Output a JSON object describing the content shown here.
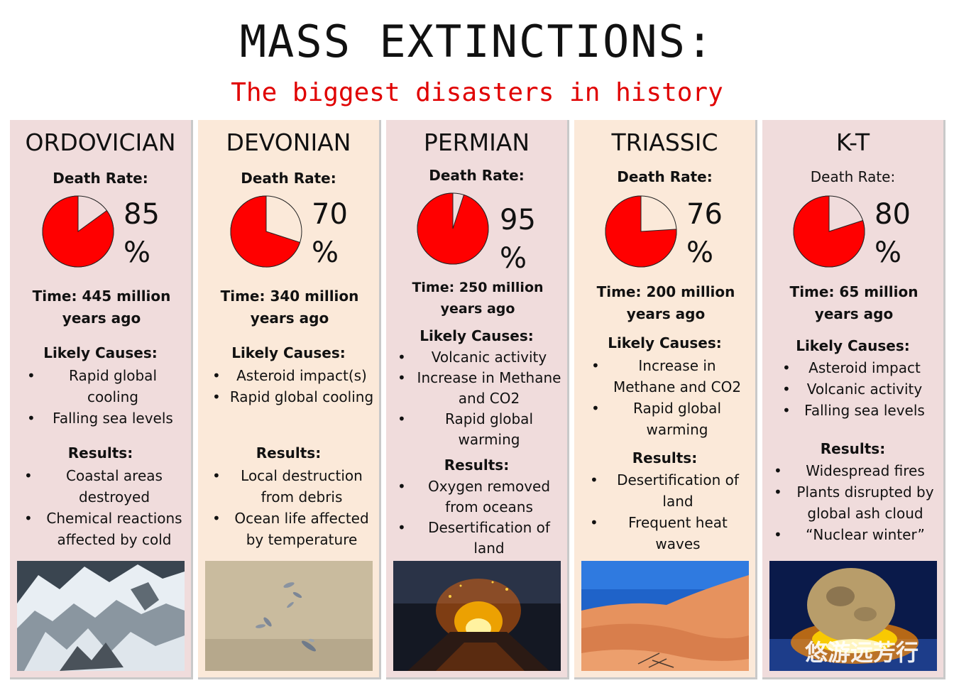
{
  "title": "MASS EXTINCTIONS:",
  "subtitle": "The biggest disasters in history",
  "colors": {
    "pie": "#ff0000",
    "subtitle": "#e00000",
    "pink": "#f0dcdc",
    "peach": "#fbe9d9"
  },
  "columns": [
    {
      "era": "ORDOVICIAN",
      "death_label": "Death Rate:",
      "death_rate": 85,
      "pct_num": "85",
      "pct_sign": "%",
      "time": "Time: 445 million years ago",
      "causes_label": "Likely Causes:",
      "causes": [
        "Rapid global cooling",
        "Falling sea levels"
      ],
      "results_label": "Results:",
      "results": [
        "Coastal areas destroyed",
        "Chemical reactions affected by cold"
      ],
      "image": "glacier-mountains"
    },
    {
      "era": "DEVONIAN",
      "death_label": "Death Rate:",
      "death_rate": 70,
      "pct_num": "70",
      "pct_sign": "%",
      "time": "Time: 340 million years ago",
      "causes_label": "Likely Causes:",
      "causes": [
        "Asteroid impact(s)",
        "Rapid global cooling"
      ],
      "results_label": "Results:",
      "results": [
        "Local destruction from debris",
        "Ocean life affected by temperature"
      ],
      "image": "dead-fish-on-sand"
    },
    {
      "era": "PERMIAN",
      "death_label": "Death Rate:",
      "death_rate": 95,
      "pct_num": "95",
      "pct_sign": "%",
      "time": "Time: 250 million years ago",
      "causes_label": "Likely Causes:",
      "causes": [
        "Volcanic activity",
        "Increase in Methane and CO2",
        "Rapid global warming"
      ],
      "results_label": "Results:",
      "results": [
        "Oxygen removed from oceans",
        "Desertification of land"
      ],
      "image": "volcanic-eruption"
    },
    {
      "era": "TRIASSIC",
      "death_label": "Death Rate:",
      "death_rate": 76,
      "pct_num": "76",
      "pct_sign": "%",
      "time": "Time: 200 million years ago",
      "causes_label": "Likely Causes:",
      "causes": [
        "Increase in Methane and CO2",
        "Rapid global warming"
      ],
      "results_label": "Results:",
      "results": [
        "Desertification of land",
        "Frequent heat waves"
      ],
      "image": "desert-dunes"
    },
    {
      "era": "K-T",
      "death_label": "Death Rate:",
      "death_rate": 80,
      "pct_num": "80",
      "pct_sign": "%",
      "time": "Time: 65 million years ago",
      "causes_label": "Likely Causes:",
      "causes": [
        "Asteroid impact",
        "Volcanic activity",
        "Falling sea levels"
      ],
      "results_label": "Results:",
      "results": [
        "Widespread fires",
        "Plants disrupted by global ash cloud",
        "“Nuclear winter”"
      ],
      "image": "asteroid-impact"
    }
  ],
  "watermark": "悠游远芳行"
}
